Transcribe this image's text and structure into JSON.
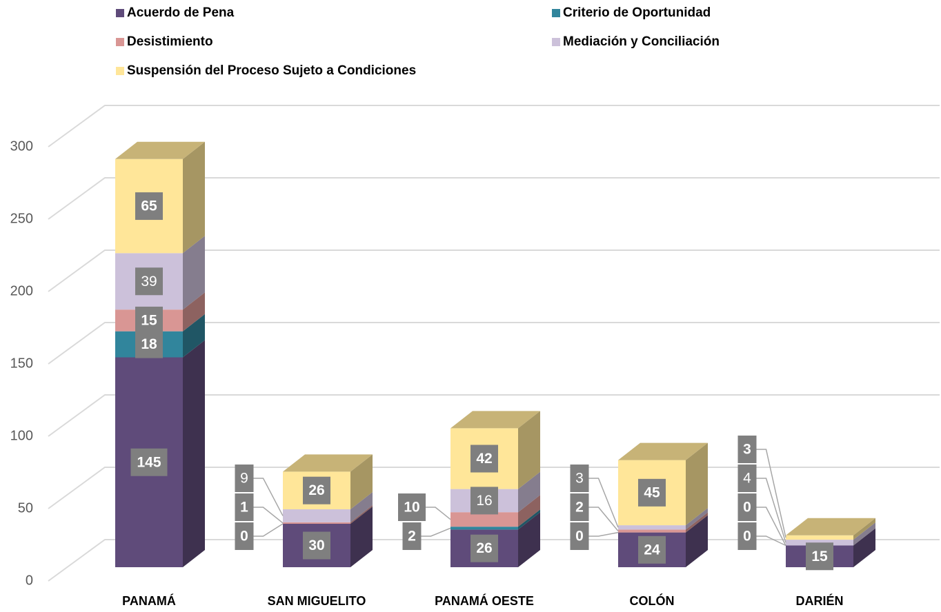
{
  "chart_data": {
    "type": "bar3d_stacked",
    "categories": [
      "PANAMÁ",
      "SAN MIGUELITO",
      "PANAMÁ OESTE",
      "COLÓN",
      "DARIÉN"
    ],
    "series": [
      {
        "name": "Acuerdo de Pena",
        "color": "#5f4b7a",
        "values": [
          145,
          30,
          26,
          24,
          15
        ]
      },
      {
        "name": "Criterio de Oportunidad",
        "color": "#31859c",
        "values": [
          18,
          0,
          2,
          0,
          0
        ]
      },
      {
        "name": "Desistimiento",
        "color": "#d99694",
        "values": [
          15,
          1,
          10,
          2,
          0
        ]
      },
      {
        "name": "Mediación y Conciliación",
        "color": "#ccc1da",
        "values": [
          39,
          9,
          16,
          3,
          4
        ]
      },
      {
        "name": "Suspensión del Proceso Sujeto a Condiciones",
        "color": "#ffe699",
        "values": [
          65,
          26,
          42,
          45,
          3
        ]
      }
    ],
    "ylim": [
      0,
      300
    ],
    "yticks": [
      0,
      50,
      100,
      150,
      200,
      250,
      300
    ],
    "grid": true,
    "legend": "top"
  }
}
